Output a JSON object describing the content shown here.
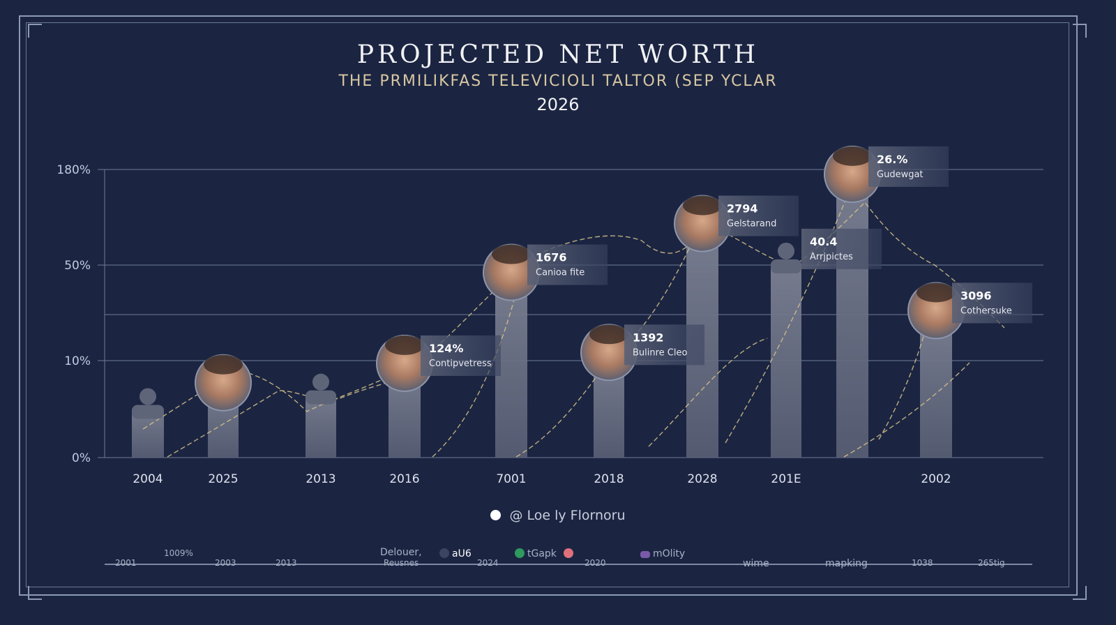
{
  "chart_data": {
    "type": "bar",
    "title": "PROJECTED NET WORTH",
    "subtitle": "THE PRMILIKFAS TELEVICIOLI TALTOR (SEP YCLAR",
    "year": "2026",
    "xlabel": "",
    "ylabel": "",
    "y_ticks": [
      "0%",
      "10%",
      "50%",
      "180%"
    ],
    "y_tick_values": [
      0,
      10,
      50,
      180
    ],
    "y_scale": "non-linear (evenly spaced ticks)",
    "grid": true,
    "bars": [
      {
        "label": "2004",
        "value": 5,
        "marker": "silhouette"
      },
      {
        "label": "2025",
        "value": 7,
        "marker": "portrait"
      },
      {
        "label": "2013",
        "value": 6.5,
        "marker": "silhouette"
      },
      {
        "label": "2016",
        "value": 9,
        "marker": "portrait",
        "annotation_value": "124%",
        "annotation_label": "Contipvetress"
      },
      {
        "label": "7001",
        "value": 44,
        "marker": "portrait",
        "annotation_value": "1676",
        "annotation_label": "Canioa fite"
      },
      {
        "label": "2018",
        "value": 10.5,
        "marker": "portrait",
        "annotation_value": "1392",
        "annotation_label": "Bulinre Cleo"
      },
      {
        "label": "2028",
        "value": 97,
        "marker": "portrait",
        "annotation_value": "2794",
        "annotation_label": "Gelstarand"
      },
      {
        "label": "201E",
        "value": 52,
        "marker": "silhouette",
        "annotation_value": "40.4",
        "annotation_label": "Arrjpictes"
      },
      {
        "label": "",
        "value": 164,
        "marker": "portrait",
        "annotation_value": "26.%",
        "annotation_label": "Gudewgat"
      },
      {
        "label": "2002",
        "value": 28,
        "marker": "portrait",
        "annotation_value": "3096",
        "annotation_label": "Cothersuke"
      }
    ],
    "legend": {
      "label": "@ Loe ly Flornoru",
      "placement": "bottom"
    }
  },
  "timeline": {
    "items": [
      "2001",
      "1009%",
      "2003",
      "2013",
      "Delouer,",
      "Reusnes",
      "aU6",
      "2024",
      "tGapk",
      "2020",
      "mOlity",
      "wime",
      "mapking",
      "1038",
      "265tig"
    ],
    "dot_colors": [
      "#3a4560",
      "#2e9a5e",
      "#e0707c",
      "#7a5aa8"
    ]
  },
  "colors": {
    "background": "#1b2542",
    "bar": "#6a6f82",
    "trend_line": "#d9c48a",
    "frame": "#8c9ab8"
  }
}
